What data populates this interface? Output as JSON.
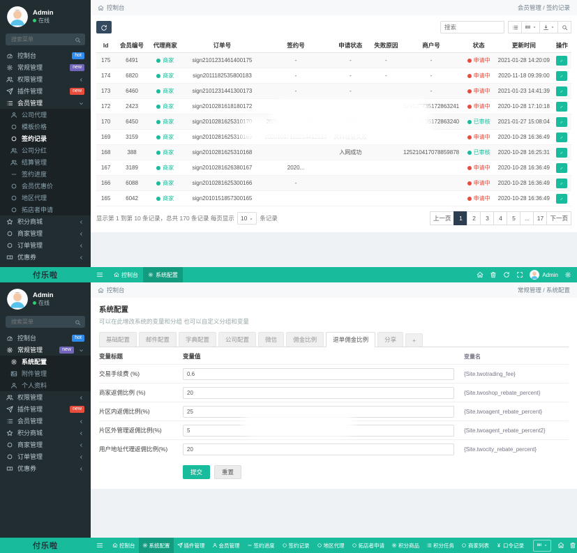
{
  "brand": "付乐啦",
  "user": {
    "name": "Admin",
    "status": "在线"
  },
  "colors": {
    "teal": "#18bc9c",
    "navy": "#2c3e50",
    "sidebar": "#222d32",
    "pending_red": "#e74c3c",
    "approved_green": "#18bc9c",
    "badge_blue": "#2f8bee",
    "badge_purple": "#7266ba",
    "badge_red": "#e74c3c"
  },
  "shot1": {
    "sidebar_search_placeholder": "搜索菜单",
    "menu": [
      {
        "label": "控制台",
        "icon": "gauge-icon",
        "badge": "hot",
        "badge_color": "#2f8bee"
      },
      {
        "label": "常规管理",
        "icon": "gear-icon",
        "badge": "new",
        "badge_color": "#7266ba"
      },
      {
        "label": "权限管理",
        "icon": "users-icon",
        "chevron": "left"
      },
      {
        "label": "插件管理",
        "icon": "plane-icon",
        "badge": "new",
        "badge_color": "#e74c3c"
      },
      {
        "label": "会员管理",
        "icon": "list-icon",
        "chevron": "down",
        "open": true,
        "children": [
          {
            "label": "公司代理",
            "icon": "user-icon"
          },
          {
            "label": "模板价格",
            "icon": "circle-icon"
          },
          {
            "label": "签约记录",
            "icon": "circle-icon",
            "active": true
          },
          {
            "label": "公司分红",
            "icon": "users-icon"
          },
          {
            "label": "结算管理",
            "icon": "users-icon"
          },
          {
            "label": "签约进度",
            "icon": "minus-icon"
          },
          {
            "label": "会员优惠价",
            "icon": "circle-icon"
          },
          {
            "label": "地区代理",
            "icon": "circle-icon"
          },
          {
            "label": "拓店者申请",
            "icon": "circle-icon"
          }
        ]
      },
      {
        "label": "积分商城",
        "icon": "star-icon",
        "chevron": "left"
      },
      {
        "label": "商家管理",
        "icon": "circle-icon",
        "chevron": "left"
      },
      {
        "label": "订单管理",
        "icon": "circle-icon",
        "chevron": "left"
      },
      {
        "label": "优惠券",
        "icon": "ticket-icon",
        "chevron": "left"
      }
    ],
    "breadcrumb": {
      "left": "控制台",
      "right": "会员管理 / 签约记录"
    },
    "toolbar": {
      "search_placeholder": "搜索",
      "buttons": [
        {
          "icon": "list-icon"
        },
        {
          "icon": "columns-icon",
          "caret": true
        },
        {
          "icon": "export-icon",
          "caret": true
        },
        {
          "icon": "search-icon"
        }
      ]
    },
    "table": {
      "headers": [
        "Id",
        "会员编号",
        "代理商家",
        "订单号",
        "签约号",
        "申请状态",
        "失败原因",
        "商户号",
        "状态",
        "更新时间",
        "操作"
      ],
      "rows": [
        {
          "id": "175",
          "member": "6491",
          "agent": "商家",
          "order": "sign2101231461400175",
          "sign": "-",
          "apply": "-",
          "fail": "-",
          "merchant": "-",
          "status": "申请中",
          "status_type": "pending",
          "updated": "2021-01-28 14:20:09"
        },
        {
          "id": "174",
          "member": "6820",
          "agent": "商家",
          "order": "sign2011182535800183",
          "sign": "-",
          "apply": "-",
          "fail": "-",
          "merchant": "-",
          "status": "申请中",
          "status_type": "pending",
          "updated": "2020-11-18 09:39:00"
        },
        {
          "id": "173",
          "member": "6460",
          "agent": "商家",
          "order": "sign2101231441300173",
          "sign": "-",
          "apply": "-",
          "fail": "",
          "merchant": "-",
          "status": "申请中",
          "status_type": "pending",
          "updated": "2021-01-23 14:41:39"
        },
        {
          "id": "172",
          "member": "2423",
          "agent": "商家",
          "order": "sign2010281618180172",
          "sign": "",
          "apply": "",
          "fail": "-",
          "merchant": "129137735172863241",
          "status": "申请中",
          "status_type": "pending",
          "updated": "2020-10-28 17:10:18"
        },
        {
          "id": "170",
          "member": "6450",
          "agent": "商家",
          "order": "sign2010281625310170",
          "sign": "2020101502514043212",
          "apply": "入网成功",
          "fail": "",
          "merchant": "129137735172863240",
          "status": "已审核",
          "status_type": "approved",
          "updated": "2021-01-27 15:08:04"
        },
        {
          "id": "169",
          "member": "3159",
          "agent": "商家",
          "order": "sign2010281625310169",
          "sign": "20201017150214412510",
          "apply": "资料校验失败",
          "fail": "",
          "merchant": "",
          "status": "申请中",
          "status_type": "pending",
          "updated": "2020-10-28 16:36:49"
        },
        {
          "id": "168",
          "member": "388",
          "agent": "商家",
          "order": "sign2010281625310168",
          "sign": "",
          "apply": "入网成功",
          "fail": "",
          "merchant": "125210417078859878",
          "status": "已审核",
          "status_type": "approved",
          "updated": "2020-10-28 16:25:31"
        },
        {
          "id": "167",
          "member": "3189",
          "agent": "商家",
          "order": "sign2010281626380167",
          "sign": "2020...",
          "apply": "",
          "fail": "",
          "merchant": "",
          "status": "申请中",
          "status_type": "pending",
          "updated": "2020-10-28 16:36:49"
        },
        {
          "id": "166",
          "member": "6088",
          "agent": "商家",
          "order": "sign2010281625300166",
          "sign": "-",
          "apply": "",
          "fail": "",
          "merchant": "",
          "status": "申请中",
          "status_type": "pending",
          "updated": "2020-10-28 16:36:49"
        },
        {
          "id": "165",
          "member": "6042",
          "agent": "商家",
          "order": "sign2010151857300165",
          "sign": "",
          "apply": "",
          "fail": "",
          "merchant": "",
          "status": "申请中",
          "status_type": "pending",
          "updated": "2020-10-28 16:36:49"
        }
      ]
    },
    "pagination": {
      "info": "显示第 1 到第 10 条记录，总共 170 条记录 每页显示",
      "per_page": "10",
      "info_suffix": "条记录",
      "pages": [
        "上一页",
        "1",
        "2",
        "3",
        "4",
        "5",
        "...",
        "17",
        "下一页"
      ],
      "active_page": "1"
    }
  },
  "navbar": {
    "tabs": [
      {
        "label": "控制台",
        "icon": "home-icon"
      },
      {
        "label": "系统配置",
        "icon": "gear-icon",
        "active": true
      }
    ],
    "right_icons": [
      "home-icon",
      "trash-icon",
      "refresh-icon",
      "expand-icon"
    ],
    "user_label": "Admin"
  },
  "shot2": {
    "sidebar_search_placeholder": "搜索菜单",
    "menu": [
      {
        "label": "控制台",
        "icon": "gauge-icon",
        "badge": "hot",
        "badge_color": "#2f8bee"
      },
      {
        "label": "常规管理",
        "icon": "gear-icon",
        "badge": "new",
        "badge_color": "#7266ba",
        "open": true,
        "children": [
          {
            "label": "系统配置",
            "icon": "gear-icon",
            "active": true
          },
          {
            "label": "附件管理",
            "icon": "picture-icon"
          },
          {
            "label": "个人资料",
            "icon": "user-icon"
          }
        ]
      },
      {
        "label": "权限管理",
        "icon": "users-icon",
        "chevron": "left"
      },
      {
        "label": "插件管理",
        "icon": "plane-icon",
        "badge": "new",
        "badge_color": "#e74c3c"
      },
      {
        "label": "会员管理",
        "icon": "list-icon",
        "chevron": "left"
      },
      {
        "label": "积分商城",
        "icon": "star-icon",
        "chevron": "left"
      },
      {
        "label": "商家管理",
        "icon": "circle-icon",
        "chevron": "left"
      },
      {
        "label": "订单管理",
        "icon": "circle-icon",
        "chevron": "left"
      },
      {
        "label": "优惠券",
        "icon": "ticket-icon",
        "chevron": "left"
      }
    ],
    "breadcrumb": {
      "left": "控制台",
      "right": "常规管理 / 系统配置"
    },
    "config": {
      "title": "系统配置",
      "subtitle": "可以在此增改系统的变量和分组 也可以自定义分组和变量",
      "tabs": [
        {
          "label": "基础配置"
        },
        {
          "label": "邮件配置"
        },
        {
          "label": "字典配置"
        },
        {
          "label": "公司配置"
        },
        {
          "label": "微信"
        },
        {
          "label": "佣金比例"
        },
        {
          "label": "退单佣金比例",
          "active": true
        },
        {
          "label": "分享"
        },
        {
          "label": "+",
          "add": true
        }
      ],
      "headers": [
        "变量标题",
        "变量值",
        "变量名"
      ],
      "rows": [
        {
          "label": "交易手续费 (%)",
          "value": "0.6",
          "var": "{Site.twotrading_fee}"
        },
        {
          "label": "商家返佣比例 (%)",
          "value": "20",
          "var": "{Site.twoshop_rebate_percent}"
        },
        {
          "label": "片区内返佣比例(%)",
          "value": "25",
          "var": "{Site.twoagent_rebate_percent}"
        },
        {
          "label": "片区外管理返佣比例(%)",
          "value": "5",
          "var": "{Site.twoagent_rebate_percent2}"
        },
        {
          "label": "用户地址代理返佣比例(%)",
          "value": "20",
          "var": "{Site.twocity_rebate_percent}"
        }
      ],
      "submit": "提交",
      "reset": "重置"
    }
  },
  "bottombar": {
    "tabs": [
      {
        "label": "控制台",
        "icon": "home-icon"
      },
      {
        "label": "系统配置",
        "icon": "gear-icon",
        "active": true
      },
      {
        "label": "插件管理",
        "icon": "plane-icon"
      },
      {
        "label": "会员管理",
        "icon": "user-icon"
      },
      {
        "label": "签约进度",
        "icon": "minus-icon"
      },
      {
        "label": "签约记录",
        "icon": "circle-icon"
      },
      {
        "label": "地区代理",
        "icon": "circle-icon"
      },
      {
        "label": "拓店者申请",
        "icon": "circle-icon"
      },
      {
        "label": "积分商品",
        "icon": "gear-icon"
      },
      {
        "label": "积分任务",
        "icon": "list-icon"
      },
      {
        "label": "商家列表",
        "icon": "circle-icon"
      },
      {
        "label": "口令记录",
        "icon": "yen-icon"
      }
    ],
    "grid_button_icon": "columns-icon",
    "right_icons": [
      "home-icon",
      "trash-icon",
      "refresh-icon",
      "expand-icon"
    ],
    "user_label": "Admin"
  }
}
